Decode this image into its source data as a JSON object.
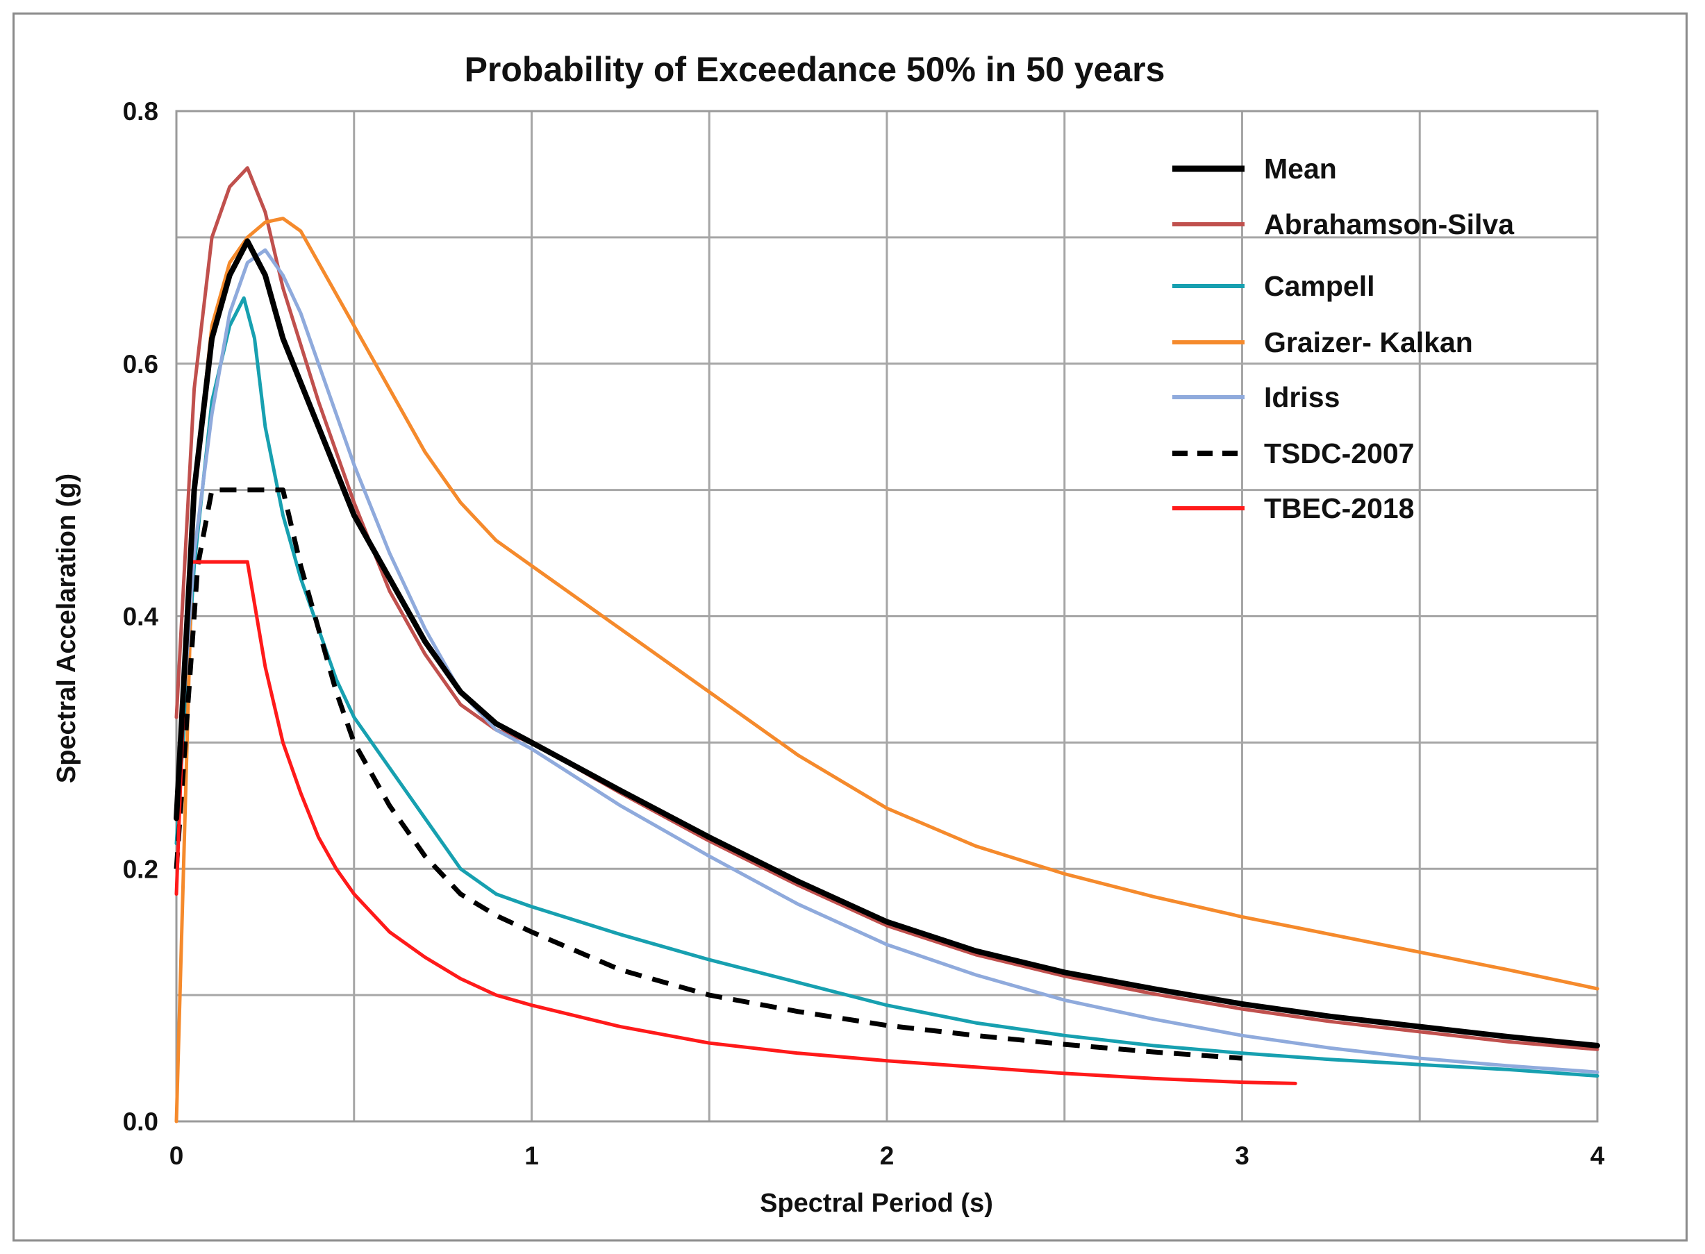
{
  "chart_data": {
    "type": "line",
    "title": "Probability of Exceedance 50% in 50 years",
    "xlabel": "Spectral Period (s)",
    "ylabel": "Spectral Accelaration (g)",
    "xlim": [
      0,
      4
    ],
    "ylim": [
      0,
      0.8
    ],
    "xticks": [
      0,
      1,
      2,
      3,
      4
    ],
    "xtick_labels": [
      "0",
      "1",
      "2",
      "3",
      "4"
    ],
    "yticks": [
      0,
      0.2,
      0.4,
      0.6,
      0.8
    ],
    "ytick_labels": [
      "0.0",
      "0.2",
      "0.4",
      "0.6",
      "0.8"
    ],
    "grid": true,
    "legend_position": "top-right",
    "series": [
      {
        "name": "Mean",
        "color": "#000000",
        "dash": "solid",
        "x": [
          0,
          0.05,
          0.1,
          0.15,
          0.2,
          0.25,
          0.3,
          0.4,
          0.5,
          0.6,
          0.7,
          0.8,
          0.9,
          1.0,
          1.25,
          1.5,
          1.75,
          2.0,
          2.25,
          2.5,
          2.75,
          3.0,
          3.25,
          3.5,
          3.75,
          4.0
        ],
        "y": [
          0.24,
          0.5,
          0.62,
          0.67,
          0.697,
          0.67,
          0.62,
          0.55,
          0.48,
          0.43,
          0.38,
          0.34,
          0.315,
          0.3,
          0.262,
          0.225,
          0.19,
          0.158,
          0.135,
          0.118,
          0.105,
          0.093,
          0.083,
          0.075,
          0.067,
          0.06
        ]
      },
      {
        "name": "Abrahamson-Silva",
        "color": "#c0504d",
        "dash": "solid",
        "x": [
          0,
          0.05,
          0.1,
          0.15,
          0.2,
          0.25,
          0.3,
          0.4,
          0.5,
          0.6,
          0.7,
          0.8,
          0.9,
          1.0,
          1.25,
          1.5,
          1.75,
          2.0,
          2.25,
          2.5,
          2.75,
          3.0,
          3.25,
          3.5,
          3.75,
          4.0
        ],
        "y": [
          0.32,
          0.58,
          0.7,
          0.74,
          0.755,
          0.72,
          0.66,
          0.57,
          0.49,
          0.42,
          0.37,
          0.33,
          0.31,
          0.3,
          0.26,
          0.222,
          0.187,
          0.155,
          0.132,
          0.115,
          0.101,
          0.089,
          0.079,
          0.071,
          0.063,
          0.057
        ]
      },
      {
        "name": "Campell",
        "color": "#17a0b0",
        "dash": "solid",
        "x": [
          0,
          0.05,
          0.1,
          0.15,
          0.19,
          0.22,
          0.25,
          0.3,
          0.35,
          0.4,
          0.45,
          0.5,
          0.6,
          0.7,
          0.8,
          0.9,
          1.0,
          1.25,
          1.5,
          1.75,
          2.0,
          2.25,
          2.5,
          2.75,
          3.0,
          3.25,
          3.5,
          3.75,
          4.0
        ],
        "y": [
          0.22,
          0.44,
          0.57,
          0.63,
          0.652,
          0.62,
          0.55,
          0.48,
          0.43,
          0.39,
          0.35,
          0.32,
          0.28,
          0.24,
          0.2,
          0.18,
          0.17,
          0.148,
          0.128,
          0.11,
          0.092,
          0.078,
          0.068,
          0.06,
          0.054,
          0.049,
          0.045,
          0.041,
          0.036
        ]
      },
      {
        "name": "Graizer- Kalkan",
        "color": "#f58a2c",
        "dash": "solid",
        "x": [
          0,
          0.05,
          0.1,
          0.15,
          0.2,
          0.25,
          0.3,
          0.35,
          0.4,
          0.5,
          0.6,
          0.7,
          0.8,
          0.9,
          1.0,
          1.25,
          1.5,
          1.75,
          2.0,
          2.25,
          2.5,
          2.75,
          3.0,
          3.25,
          3.5,
          3.75,
          4.0
        ],
        "y": [
          0.0,
          0.5,
          0.63,
          0.68,
          0.7,
          0.712,
          0.715,
          0.705,
          0.68,
          0.63,
          0.58,
          0.53,
          0.49,
          0.46,
          0.44,
          0.39,
          0.34,
          0.29,
          0.248,
          0.218,
          0.196,
          0.178,
          0.162,
          0.148,
          0.134,
          0.12,
          0.105
        ]
      },
      {
        "name": "Idriss",
        "color": "#8faadc",
        "dash": "solid",
        "x": [
          0,
          0.05,
          0.1,
          0.15,
          0.2,
          0.25,
          0.3,
          0.35,
          0.4,
          0.5,
          0.6,
          0.7,
          0.8,
          0.9,
          1.0,
          1.25,
          1.5,
          1.75,
          2.0,
          2.25,
          2.5,
          2.75,
          3.0,
          3.25,
          3.5,
          3.75,
          4.0
        ],
        "y": [
          0.25,
          0.45,
          0.56,
          0.64,
          0.68,
          0.69,
          0.67,
          0.64,
          0.6,
          0.52,
          0.45,
          0.39,
          0.34,
          0.31,
          0.295,
          0.25,
          0.21,
          0.172,
          0.14,
          0.116,
          0.096,
          0.081,
          0.068,
          0.058,
          0.05,
          0.044,
          0.039
        ]
      },
      {
        "name": "TSDC-2007",
        "color": "#000000",
        "dash": "dashed",
        "x": [
          0,
          0.03,
          0.06,
          0.1,
          0.2,
          0.3,
          0.35,
          0.4,
          0.45,
          0.5,
          0.6,
          0.7,
          0.8,
          0.9,
          1.0,
          1.25,
          1.5,
          1.75,
          2.0,
          2.25,
          2.5,
          2.75,
          3.0
        ],
        "y": [
          0.2,
          0.32,
          0.44,
          0.5,
          0.5,
          0.5,
          0.44,
          0.39,
          0.34,
          0.3,
          0.25,
          0.21,
          0.18,
          0.163,
          0.15,
          0.12,
          0.1,
          0.087,
          0.076,
          0.068,
          0.061,
          0.055,
          0.05
        ]
      },
      {
        "name": "TBEC-2018",
        "color": "#ff1a1a",
        "dash": "solid",
        "x": [
          0,
          0.02,
          0.04,
          0.1,
          0.2,
          0.25,
          0.3,
          0.35,
          0.4,
          0.45,
          0.5,
          0.6,
          0.7,
          0.8,
          0.9,
          1.0,
          1.25,
          1.5,
          1.75,
          2.0,
          2.25,
          2.5,
          2.75,
          3.0,
          3.15
        ],
        "y": [
          0.18,
          0.33,
          0.443,
          0.443,
          0.443,
          0.36,
          0.3,
          0.26,
          0.225,
          0.2,
          0.18,
          0.15,
          0.13,
          0.113,
          0.1,
          0.092,
          0.075,
          0.062,
          0.054,
          0.048,
          0.043,
          0.038,
          0.034,
          0.031,
          0.03
        ]
      }
    ]
  }
}
